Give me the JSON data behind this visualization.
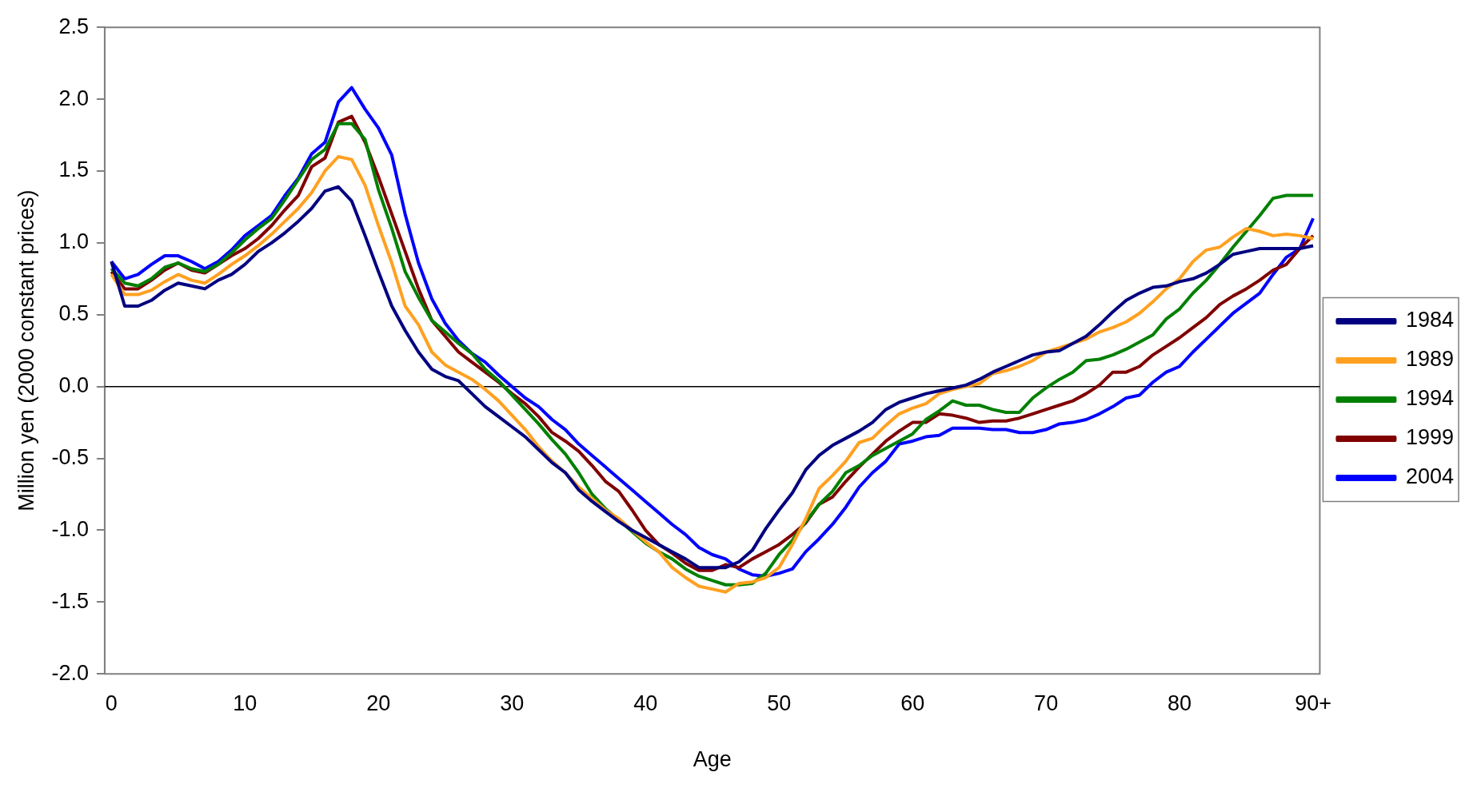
{
  "chart_data": {
    "type": "line",
    "xlabel": "Age",
    "ylabel": "Million yen (2000 constant prices)",
    "categories": [
      "0",
      null,
      null,
      null,
      null,
      null,
      null,
      null,
      null,
      null,
      "10",
      null,
      null,
      null,
      null,
      null,
      null,
      null,
      null,
      null,
      "20",
      null,
      null,
      null,
      null,
      null,
      null,
      null,
      null,
      null,
      "30",
      null,
      null,
      null,
      null,
      null,
      null,
      null,
      null,
      null,
      "40",
      null,
      null,
      null,
      null,
      null,
      null,
      null,
      null,
      null,
      "50",
      null,
      null,
      null,
      null,
      null,
      null,
      null,
      null,
      null,
      "60",
      null,
      null,
      null,
      null,
      null,
      null,
      null,
      null,
      null,
      "70",
      null,
      null,
      null,
      null,
      null,
      null,
      null,
      null,
      null,
      "80",
      null,
      null,
      null,
      null,
      null,
      null,
      null,
      null,
      null,
      "90+"
    ],
    "series": [
      {
        "name": "1984",
        "color": "#000080",
        "values": [
          0.87,
          0.56,
          0.56,
          0.6,
          0.67,
          0.72,
          0.7,
          0.68,
          0.74,
          0.78,
          0.85,
          0.94,
          1.0,
          1.07,
          1.15,
          1.24,
          1.36,
          1.39,
          1.29,
          1.05,
          0.8,
          0.56,
          0.39,
          0.24,
          0.12,
          0.07,
          0.04,
          -0.05,
          -0.14,
          -0.21,
          -0.28,
          -0.35,
          -0.44,
          -0.53,
          -0.6,
          -0.72,
          -0.8,
          -0.87,
          -0.94,
          -1.0,
          -1.05,
          -1.1,
          -1.15,
          -1.2,
          -1.26,
          -1.26,
          -1.26,
          -1.22,
          -1.14,
          -0.99,
          -0.86,
          -0.74,
          -0.58,
          -0.48,
          -0.41,
          -0.36,
          -0.31,
          -0.25,
          -0.16,
          -0.11,
          -0.08,
          -0.05,
          -0.03,
          -0.01,
          0.01,
          0.05,
          0.1,
          0.14,
          0.18,
          0.22,
          0.24,
          0.25,
          0.3,
          0.35,
          0.43,
          0.52,
          0.6,
          0.65,
          0.69,
          0.7,
          0.73,
          0.75,
          0.79,
          0.85,
          0.92,
          0.94,
          0.96,
          0.96,
          0.96,
          0.96,
          0.98
        ]
      },
      {
        "name": "1989",
        "color": "#ffa020",
        "values": [
          0.78,
          0.64,
          0.64,
          0.67,
          0.73,
          0.78,
          0.74,
          0.72,
          0.78,
          0.85,
          0.91,
          0.98,
          1.06,
          1.15,
          1.24,
          1.35,
          1.5,
          1.6,
          1.58,
          1.4,
          1.12,
          0.86,
          0.56,
          0.43,
          0.24,
          0.15,
          0.1,
          0.05,
          -0.02,
          -0.1,
          -0.2,
          -0.3,
          -0.42,
          -0.52,
          -0.6,
          -0.7,
          -0.78,
          -0.86,
          -0.92,
          -1.0,
          -1.08,
          -1.15,
          -1.26,
          -1.33,
          -1.39,
          -1.41,
          -1.43,
          -1.37,
          -1.36,
          -1.33,
          -1.26,
          -1.1,
          -0.92,
          -0.71,
          -0.62,
          -0.52,
          -0.39,
          -0.36,
          -0.27,
          -0.19,
          -0.15,
          -0.12,
          -0.05,
          -0.02,
          0.0,
          0.02,
          0.09,
          0.11,
          0.14,
          0.18,
          0.24,
          0.27,
          0.3,
          0.33,
          0.38,
          0.41,
          0.45,
          0.51,
          0.59,
          0.68,
          0.75,
          0.87,
          0.95,
          0.97,
          1.04,
          1.1,
          1.08,
          1.05,
          1.06,
          1.05,
          1.03
        ]
      },
      {
        "name": "1994",
        "color": "#008000",
        "values": [
          0.82,
          0.72,
          0.7,
          0.75,
          0.83,
          0.86,
          0.82,
          0.8,
          0.85,
          0.93,
          1.02,
          1.1,
          1.17,
          1.3,
          1.44,
          1.58,
          1.65,
          1.83,
          1.83,
          1.72,
          1.37,
          1.1,
          0.8,
          0.62,
          0.46,
          0.38,
          0.3,
          0.23,
          0.12,
          0.04,
          -0.06,
          -0.16,
          -0.26,
          -0.37,
          -0.47,
          -0.6,
          -0.75,
          -0.85,
          -0.93,
          -1.01,
          -1.09,
          -1.15,
          -1.2,
          -1.27,
          -1.32,
          -1.35,
          -1.38,
          -1.38,
          -1.37,
          -1.3,
          -1.17,
          -1.07,
          -0.94,
          -0.82,
          -0.73,
          -0.6,
          -0.55,
          -0.48,
          -0.43,
          -0.38,
          -0.33,
          -0.23,
          -0.17,
          -0.1,
          -0.13,
          -0.13,
          -0.16,
          -0.18,
          -0.18,
          -0.08,
          -0.01,
          0.05,
          0.1,
          0.18,
          0.19,
          0.22,
          0.26,
          0.31,
          0.36,
          0.47,
          0.54,
          0.65,
          0.74,
          0.85,
          0.97,
          1.08,
          1.19,
          1.31,
          1.33,
          1.33,
          1.33
        ]
      },
      {
        "name": "1999",
        "color": "#800000",
        "values": [
          0.8,
          0.68,
          0.68,
          0.74,
          0.81,
          0.86,
          0.81,
          0.79,
          0.85,
          0.91,
          0.96,
          1.03,
          1.12,
          1.23,
          1.33,
          1.53,
          1.59,
          1.84,
          1.88,
          1.7,
          1.46,
          1.2,
          0.94,
          0.68,
          0.46,
          0.35,
          0.24,
          0.17,
          0.1,
          0.03,
          -0.05,
          -0.12,
          -0.21,
          -0.32,
          -0.38,
          -0.45,
          -0.55,
          -0.66,
          -0.73,
          -0.86,
          -1.0,
          -1.1,
          -1.16,
          -1.23,
          -1.28,
          -1.28,
          -1.24,
          -1.26,
          -1.2,
          -1.15,
          -1.1,
          -1.03,
          -0.95,
          -0.82,
          -0.77,
          -0.66,
          -0.56,
          -0.47,
          -0.38,
          -0.31,
          -0.25,
          -0.25,
          -0.19,
          -0.2,
          -0.22,
          -0.25,
          -0.24,
          -0.24,
          -0.22,
          -0.19,
          -0.16,
          -0.13,
          -0.1,
          -0.05,
          0.01,
          0.1,
          0.1,
          0.14,
          0.22,
          0.28,
          0.34,
          0.41,
          0.48,
          0.57,
          0.63,
          0.68,
          0.74,
          0.81,
          0.85,
          0.96,
          1.05
        ]
      },
      {
        "name": "2004",
        "color": "#0000ff",
        "values": [
          0.87,
          0.75,
          0.78,
          0.85,
          0.91,
          0.91,
          0.87,
          0.82,
          0.87,
          0.95,
          1.05,
          1.12,
          1.19,
          1.33,
          1.45,
          1.62,
          1.7,
          1.98,
          2.08,
          1.93,
          1.8,
          1.61,
          1.2,
          0.86,
          0.61,
          0.44,
          0.32,
          0.23,
          0.17,
          0.08,
          0.0,
          -0.08,
          -0.14,
          -0.23,
          -0.3,
          -0.4,
          -0.48,
          -0.56,
          -0.64,
          -0.72,
          -0.8,
          -0.88,
          -0.96,
          -1.03,
          -1.12,
          -1.17,
          -1.2,
          -1.27,
          -1.31,
          -1.32,
          -1.3,
          -1.27,
          -1.15,
          -1.06,
          -0.96,
          -0.84,
          -0.7,
          -0.6,
          -0.52,
          -0.4,
          -0.38,
          -0.35,
          -0.34,
          -0.29,
          -0.29,
          -0.29,
          -0.3,
          -0.3,
          -0.32,
          -0.32,
          -0.3,
          -0.26,
          -0.25,
          -0.23,
          -0.19,
          -0.14,
          -0.08,
          -0.06,
          0.03,
          0.1,
          0.14,
          0.24,
          0.33,
          0.42,
          0.51,
          0.58,
          0.65,
          0.78,
          0.9,
          0.96,
          1.17
        ]
      }
    ],
    "ylim": [
      -2.0,
      2.5
    ],
    "yticks": [
      {
        "value": -2,
        "label": "-2.0"
      },
      {
        "value": -1.5,
        "label": "-1.5"
      },
      {
        "value": -1,
        "label": "-1.0"
      },
      {
        "value": -0.5,
        "label": "-0.5"
      },
      {
        "value": 0,
        "label": "0.0"
      },
      {
        "value": 0.5,
        "label": "0.5"
      },
      {
        "value": 1,
        "label": "1.0"
      },
      {
        "value": 1.5,
        "label": "1.5"
      },
      {
        "value": 2,
        "label": "2.0"
      },
      {
        "value": 2.5,
        "label": "2.5"
      }
    ],
    "ref_lines": [
      {
        "axis": "y",
        "value": 0,
        "color": "#000000"
      }
    ],
    "grid": false,
    "legend": "right",
    "marker": "none",
    "line_style": "solid"
  }
}
